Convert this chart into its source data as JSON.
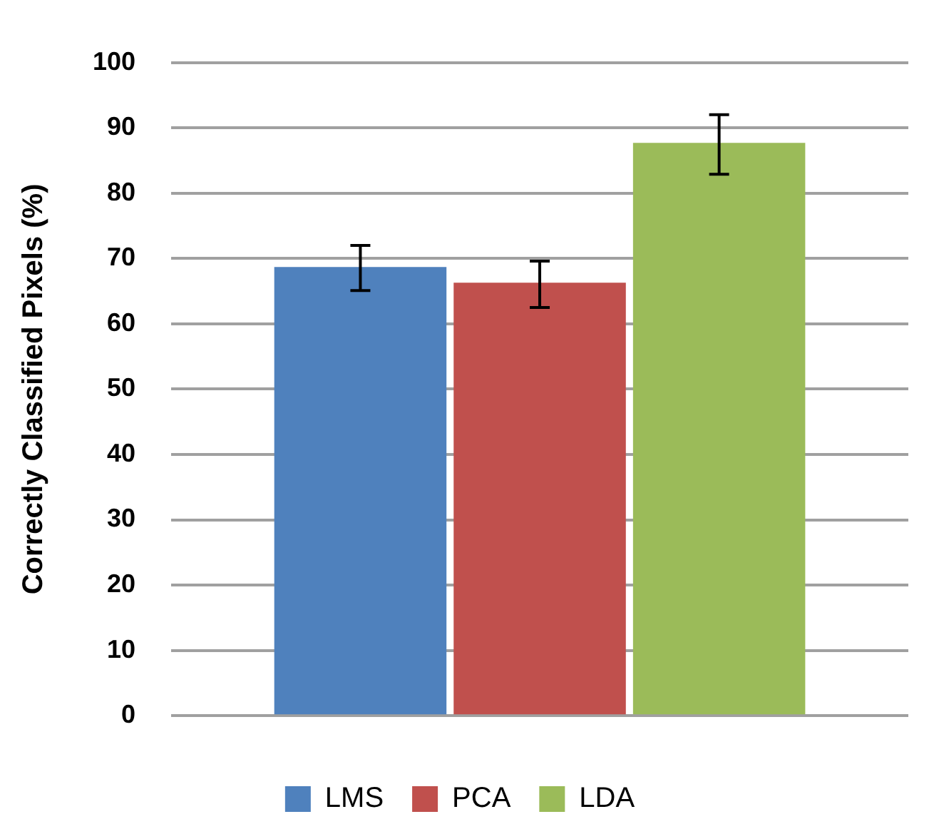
{
  "chart_data": {
    "type": "bar",
    "ylabel": "Correctly Classified Pixels (%)",
    "categories": [
      null
    ],
    "series": [
      {
        "name": "LMS",
        "color": "#4f81bd",
        "values": [
          68.7
        ],
        "errors": [
          [
            65.1,
            72.0
          ]
        ]
      },
      {
        "name": "PCA",
        "color": "#c0504d",
        "values": [
          66.3
        ],
        "errors": [
          [
            62.5,
            69.6
          ]
        ]
      },
      {
        "name": "LDA",
        "color": "#9bbb59",
        "values": [
          87.7
        ],
        "errors": [
          [
            82.9,
            92.0
          ]
        ]
      }
    ],
    "ylim": [
      0,
      100
    ],
    "yticks": [
      0,
      10,
      20,
      30,
      40,
      50,
      60,
      70,
      80,
      90,
      100
    ],
    "grid": "y",
    "legend": "bottom"
  }
}
